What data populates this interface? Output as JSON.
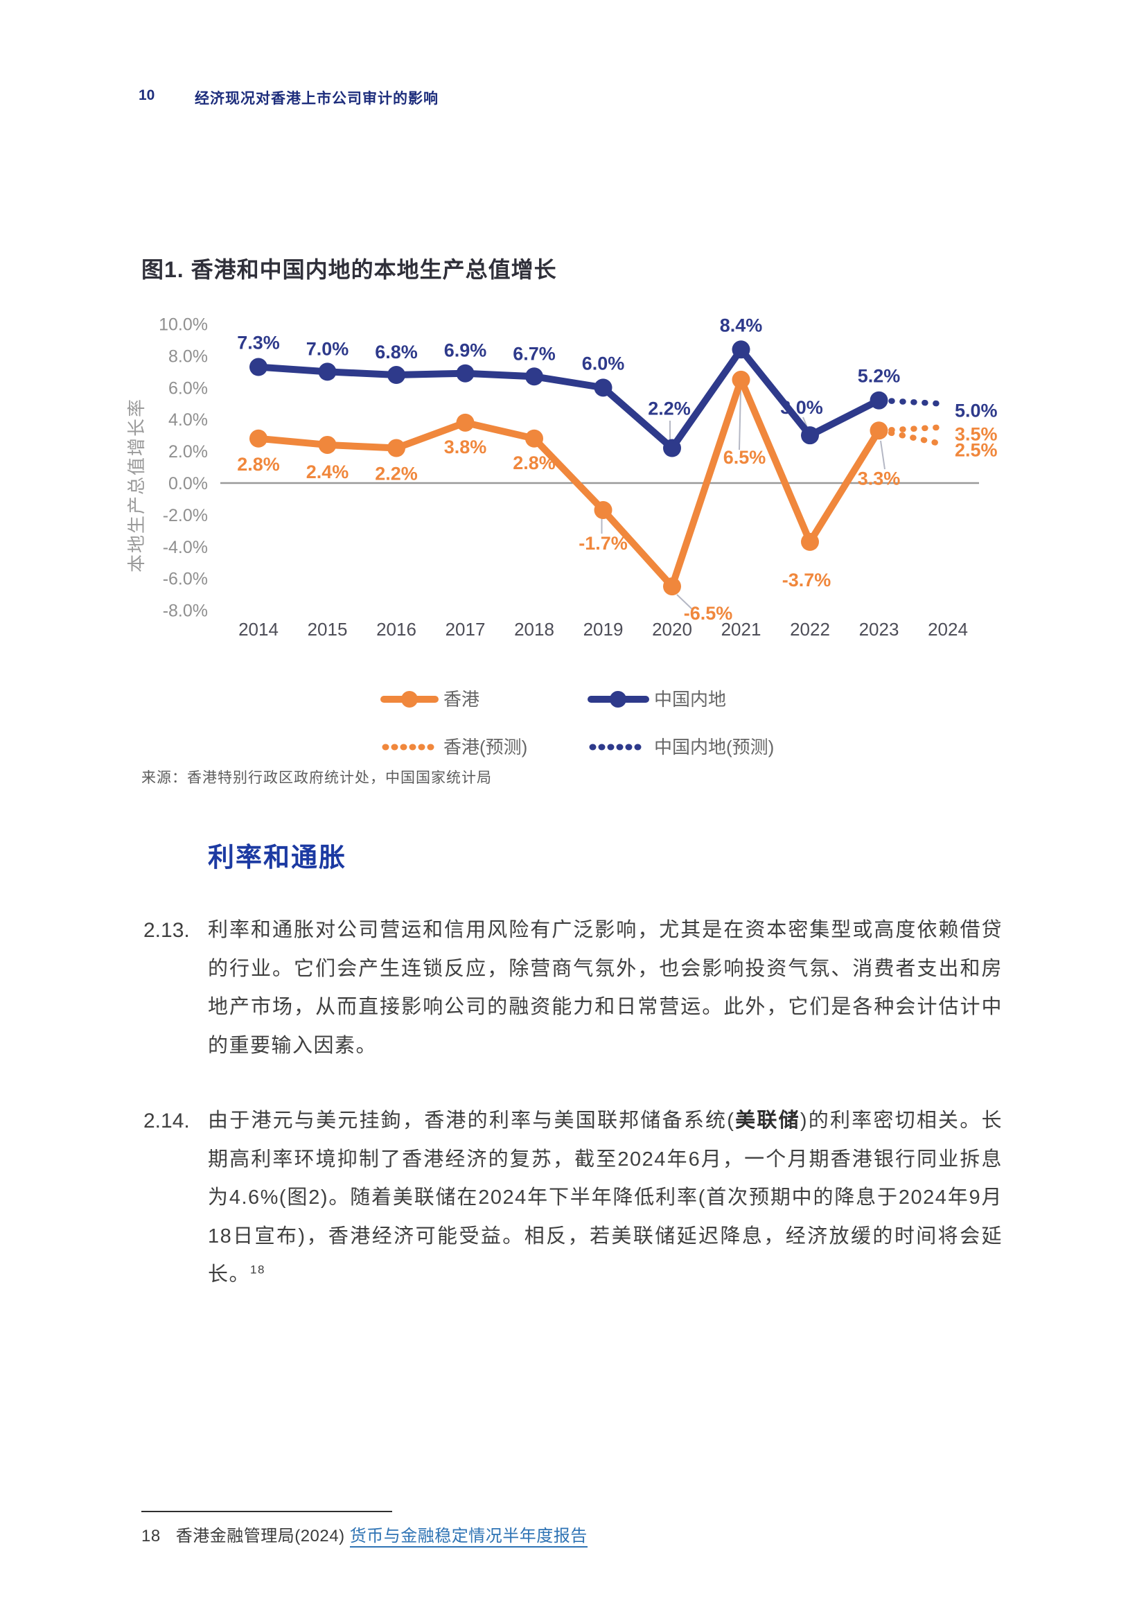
{
  "header": {
    "page_number": "10",
    "title": "经济现况对香港上市公司审计的影响"
  },
  "figure": {
    "title": "图1. 香港和中国内地的本地生产总值增长",
    "source": "来源：香港特别行政区政府统计处，中国国家统计局"
  },
  "chart_data": {
    "type": "line",
    "title": "图1. 香港和中国内地的本地生产总值增长",
    "xlabel": "",
    "ylabel": "本地生产总值增长率",
    "categories": [
      "2014",
      "2015",
      "2016",
      "2017",
      "2018",
      "2019",
      "2020",
      "2021",
      "2022",
      "2023",
      "2024"
    ],
    "ylim": [
      -8,
      10
    ],
    "ytick_values": [
      10,
      8,
      6,
      4,
      2,
      0,
      -2,
      -4,
      -6,
      -8
    ],
    "ytick_labels": [
      "10.0%",
      "8.0%",
      "6.0%",
      "4.0%",
      "2.0%",
      "0.0%",
      "-2.0%",
      "-4.0%",
      "-6.0%",
      "-8.0%"
    ],
    "grid": false,
    "legend_position": "bottom",
    "colors": {
      "hongkong": "#F0873C",
      "mainland": "#2E3A8B",
      "axis_gray": "#8F8F8F",
      "zero_line": "#999999"
    },
    "series": [
      {
        "name": "香港",
        "color": "#F0873C",
        "style": "solid",
        "values": [
          2.8,
          2.4,
          2.2,
          3.8,
          2.8,
          -1.7,
          -6.5,
          6.5,
          -3.7,
          3.3
        ],
        "labels": [
          "2.8%",
          "2.4%",
          "2.2%",
          "3.8%",
          "2.8%",
          "-1.7%",
          "-6.5%",
          "6.5%",
          "-3.7%",
          "3.3%"
        ]
      },
      {
        "name": "中国内地",
        "color": "#2E3A8B",
        "style": "solid",
        "values": [
          7.3,
          7.0,
          6.8,
          6.9,
          6.7,
          6.0,
          2.2,
          8.4,
          3.0,
          5.2
        ],
        "labels": [
          "7.3%",
          "7.0%",
          "6.8%",
          "6.9%",
          "6.7%",
          "6.0%",
          "2.2%",
          "8.4%",
          "3.0%",
          "5.2%"
        ]
      },
      {
        "name": "香港(预测)",
        "color": "#F0873C",
        "style": "dotted",
        "segments": [
          {
            "from": {
              "category": "2023",
              "value": 3.3
            },
            "to": {
              "category": "2024",
              "value": 3.5
            }
          },
          {
            "from": {
              "category": "2023",
              "value": 3.3
            },
            "to": {
              "category": "2024",
              "value": 2.5
            }
          }
        ],
        "end_labels": [
          "3.5%",
          "2.5%"
        ]
      },
      {
        "name": "中国内地(预测)",
        "color": "#2E3A8B",
        "style": "dotted",
        "segments": [
          {
            "from": {
              "category": "2023",
              "value": 5.2
            },
            "to": {
              "category": "2024",
              "value": 5.0
            }
          }
        ],
        "end_labels": [
          "5.0%"
        ]
      }
    ],
    "legend": [
      {
        "name": "香港",
        "color": "#F0873C",
        "style": "solid"
      },
      {
        "name": "中国内地",
        "color": "#2E3A8B",
        "style": "solid"
      },
      {
        "name": "香港(预测)",
        "color": "#F0873C",
        "style": "dotted"
      },
      {
        "name": "中国内地(预测)",
        "color": "#2E3A8B",
        "style": "dotted"
      }
    ]
  },
  "section": {
    "heading": "利率和通胀"
  },
  "paragraphs": [
    {
      "number": "2.13.",
      "text": "利率和通胀对公司营运和信用风险有广泛影响，尤其是在资本密集型或高度依赖借贷的行业。它们会产生连锁反应，除营商气氛外，也会影响投资气氛、消费者支出和房地产市场，从而直接影响公司的融资能力和日常营运。此外，它们是各种会计估计中的重要输入因素。"
    },
    {
      "number": "2.14.",
      "pre": "由于港元与美元挂鉤，香港的利率与美国联邦储备系统(",
      "bold": "美联储",
      "post": ")的利率密切相关。长期高利率环境抑制了香港经济的复苏，截至2024年6月，一个月期香港银行同业拆息为4.6%(图2)。随着美联储在2024年下半年降低利率(首次预期中的降息于2024年9月18日宣布)，香港经济可能受益。相反，若美联储延迟降息，经济放缓的时间将会延长。",
      "sup": "18"
    }
  ],
  "footnote": {
    "number": "18",
    "text": "香港金融管理局(2024) ",
    "link": "货币与金融稳定情况半年度报告"
  }
}
